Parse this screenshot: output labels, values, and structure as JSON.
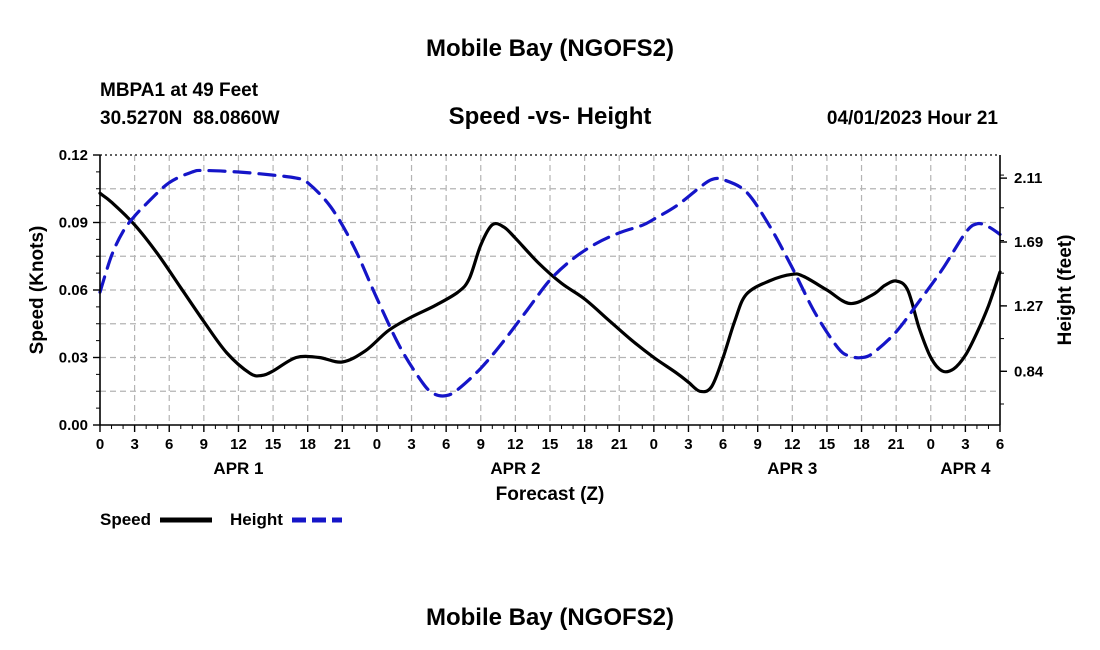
{
  "chart_data": {
    "type": "line",
    "title": "Mobile Bay (NGOFS2)",
    "subtitle": "Speed -vs- Height",
    "station": "MBPA1 at 49 Feet",
    "location": "30.5270N  88.0860W",
    "timestamp": "04/01/2023 Hour 21",
    "footer_title": "Mobile Bay (NGOFS2)",
    "xlabel": "Forecast (Z)",
    "ylabel_left": "Speed (Knots)",
    "ylabel_right": "Height (feet)",
    "x_range": [
      0,
      78
    ],
    "x_ticks": [
      {
        "x": 0,
        "label": "0"
      },
      {
        "x": 3,
        "label": "3"
      },
      {
        "x": 6,
        "label": "6"
      },
      {
        "x": 9,
        "label": "9"
      },
      {
        "x": 12,
        "label": "12"
      },
      {
        "x": 15,
        "label": "15"
      },
      {
        "x": 18,
        "label": "18"
      },
      {
        "x": 21,
        "label": "21"
      },
      {
        "x": 24,
        "label": "0"
      },
      {
        "x": 27,
        "label": "3"
      },
      {
        "x": 30,
        "label": "6"
      },
      {
        "x": 33,
        "label": "9"
      },
      {
        "x": 36,
        "label": "12"
      },
      {
        "x": 39,
        "label": "15"
      },
      {
        "x": 42,
        "label": "18"
      },
      {
        "x": 45,
        "label": "21"
      },
      {
        "x": 48,
        "label": "0"
      },
      {
        "x": 51,
        "label": "3"
      },
      {
        "x": 54,
        "label": "6"
      },
      {
        "x": 57,
        "label": "9"
      },
      {
        "x": 60,
        "label": "12"
      },
      {
        "x": 63,
        "label": "15"
      },
      {
        "x": 66,
        "label": "18"
      },
      {
        "x": 69,
        "label": "21"
      },
      {
        "x": 72,
        "label": "0"
      },
      {
        "x": 75,
        "label": "3"
      },
      {
        "x": 78,
        "label": "6"
      }
    ],
    "date_labels": [
      {
        "x": 12,
        "label": "APR 1"
      },
      {
        "x": 36,
        "label": "APR 2"
      },
      {
        "x": 60,
        "label": "APR 3"
      },
      {
        "x": 75,
        "label": "APR 4"
      }
    ],
    "y_left_range": [
      0,
      0.12
    ],
    "y_left_ticks": [
      "0.00",
      "0.03",
      "0.06",
      "0.09",
      "0.12"
    ],
    "y_right_range": [
      0.487,
      2.262
    ],
    "y_right_ticks": [
      "0.84",
      "1.27",
      "1.69",
      "2.11"
    ],
    "grid": true,
    "legend": {
      "position": "bottom-left"
    },
    "series": [
      {
        "name": "Speed",
        "axis": "left",
        "color": "#000000",
        "dash": "solid",
        "x": [
          0,
          1,
          3,
          5,
          7,
          9,
          11,
          13,
          14,
          15,
          17,
          19,
          21,
          23,
          25,
          27,
          29,
          31,
          32,
          33,
          34,
          35,
          36,
          38,
          40,
          42,
          44,
          46,
          48,
          50,
          51,
          52,
          53,
          54,
          55,
          56,
          58,
          60,
          61,
          63,
          65,
          67,
          68,
          69,
          70,
          71,
          72,
          73,
          74,
          75,
          76,
          77,
          78
        ],
        "values": [
          0.103,
          0.099,
          0.089,
          0.076,
          0.061,
          0.046,
          0.032,
          0.023,
          0.022,
          0.024,
          0.03,
          0.03,
          0.028,
          0.033,
          0.042,
          0.048,
          0.053,
          0.059,
          0.065,
          0.08,
          0.089,
          0.088,
          0.083,
          0.072,
          0.063,
          0.056,
          0.047,
          0.038,
          0.03,
          0.023,
          0.019,
          0.015,
          0.017,
          0.03,
          0.046,
          0.058,
          0.064,
          0.067,
          0.066,
          0.06,
          0.054,
          0.058,
          0.062,
          0.064,
          0.06,
          0.043,
          0.03,
          0.024,
          0.025,
          0.031,
          0.041,
          0.053,
          0.068
        ]
      },
      {
        "name": "Height",
        "axis": "right",
        "color": "#1515c8",
        "dash": "dashed",
        "x": [
          0,
          1,
          2,
          3,
          4,
          6,
          8,
          9,
          12,
          15,
          17,
          18,
          20,
          22,
          24,
          26,
          28,
          29,
          30,
          31,
          33,
          35,
          37,
          39,
          41,
          43,
          45,
          47,
          48,
          50,
          52,
          53,
          54,
          56,
          58,
          60,
          62,
          64,
          65,
          66,
          67,
          69,
          71,
          73,
          75,
          76,
          77,
          78
        ],
        "values": [
          1.36,
          1.6,
          1.76,
          1.86,
          1.94,
          2.08,
          2.15,
          2.16,
          2.15,
          2.13,
          2.11,
          2.08,
          1.92,
          1.66,
          1.32,
          1.0,
          0.76,
          0.69,
          0.68,
          0.72,
          0.86,
          1.04,
          1.24,
          1.44,
          1.58,
          1.68,
          1.75,
          1.8,
          1.84,
          1.93,
          2.05,
          2.1,
          2.1,
          2.02,
          1.8,
          1.52,
          1.22,
          0.99,
          0.94,
          0.93,
          0.96,
          1.1,
          1.3,
          1.51,
          1.75,
          1.81,
          1.79,
          1.74
        ]
      }
    ]
  }
}
